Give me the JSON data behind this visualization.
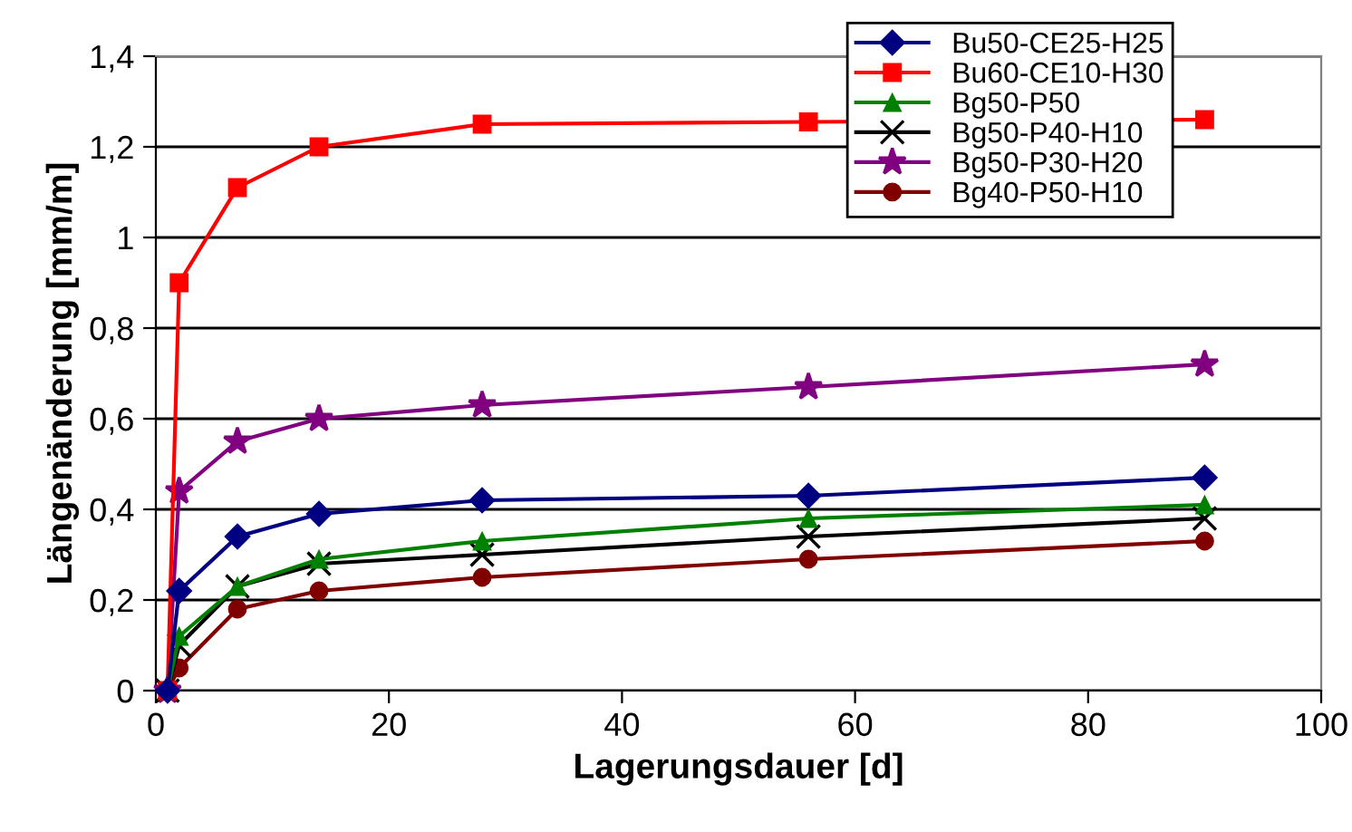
{
  "chart_data": {
    "type": "line",
    "xlabel": "Lagerungsdauer [d]",
    "ylabel": "Längenänderung [mm/m]",
    "x": [
      1,
      2,
      7,
      14,
      28,
      56,
      90
    ],
    "series": [
      {
        "name": "Bu50-CE25-H25",
        "color": "#000080",
        "marker": "diamond",
        "values": [
          0,
          0.22,
          0.34,
          0.39,
          0.42,
          0.43,
          0.47
        ]
      },
      {
        "name": "Bu60-CE10-H30",
        "color": "#ff0000",
        "marker": "square",
        "values": [
          0,
          0.9,
          1.11,
          1.2,
          1.25,
          1.255,
          1.26
        ]
      },
      {
        "name": "Bg50-P50",
        "color": "#008000",
        "marker": "triangle",
        "values": [
          0,
          0.12,
          0.23,
          0.29,
          0.33,
          0.38,
          0.41
        ]
      },
      {
        "name": "Bg50-P40-H10",
        "color": "#000000",
        "marker": "cross",
        "values": [
          0,
          0.1,
          0.23,
          0.28,
          0.3,
          0.34,
          0.38
        ]
      },
      {
        "name": "Bg50-P30-H20",
        "color": "#800080",
        "marker": "star",
        "values": [
          0,
          0.44,
          0.55,
          0.6,
          0.63,
          0.67,
          0.72
        ]
      },
      {
        "name": "Bg40-P50-H10",
        "color": "#800000",
        "marker": "circle",
        "values": [
          0,
          0.05,
          0.18,
          0.22,
          0.25,
          0.29,
          0.33
        ]
      }
    ],
    "xlim": [
      0,
      100
    ],
    "xticks": [
      0,
      20,
      40,
      60,
      80,
      100
    ],
    "ylim": [
      0,
      1.4
    ],
    "yticks": [
      0,
      {
        "value": 0.2,
        "label": "0,2"
      },
      {
        "value": 0.4,
        "label": "0,4"
      },
      {
        "value": 0.6,
        "label": "0,6"
      },
      {
        "value": 0.8,
        "label": "0,8"
      },
      1,
      {
        "value": 1.2,
        "label": "1,2"
      },
      {
        "value": 1.4,
        "label": "1,4"
      }
    ],
    "grid": "y",
    "legend": "top right",
    "line_style": "solid"
  }
}
